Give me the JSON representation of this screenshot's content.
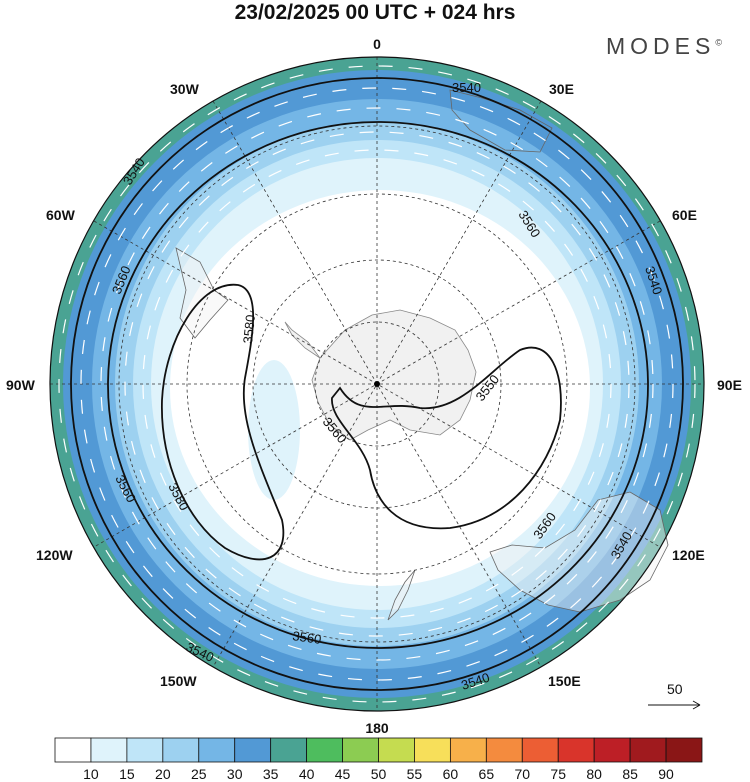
{
  "title": "23/02/2025  00 UTC  + 024 hrs",
  "brand": "MODES",
  "brand_mark": "©",
  "lon_labels": {
    "top": "0",
    "bottom": "180",
    "left": "90W",
    "right": "90E",
    "l30w": "30W",
    "l30e": "30E",
    "l60w": "60W",
    "l60e": "60E",
    "l120w": "120W",
    "l120e": "120E",
    "l150w": "150W",
    "l150e": "150E"
  },
  "contour_labels": [
    "3540",
    "3550",
    "3560",
    "3580"
  ],
  "vector_ref": {
    "value": "50"
  },
  "colorbar": {
    "labels": [
      "10",
      "15",
      "20",
      "25",
      "30",
      "35",
      "40",
      "45",
      "50",
      "55",
      "60",
      "65",
      "70",
      "75",
      "80",
      "85",
      "90"
    ],
    "colors": [
      "#ffffff",
      "#dff3fb",
      "#bfe5f8",
      "#9dd1f0",
      "#74b6e6",
      "#5299d5",
      "#4aa393",
      "#4ebd5e",
      "#8ccc52",
      "#c5dc50",
      "#f7df5a",
      "#f7b04a",
      "#f48b3e",
      "#ec5e34",
      "#d9342b",
      "#bd1f26",
      "#a01a1e",
      "#8a1616"
    ]
  }
}
